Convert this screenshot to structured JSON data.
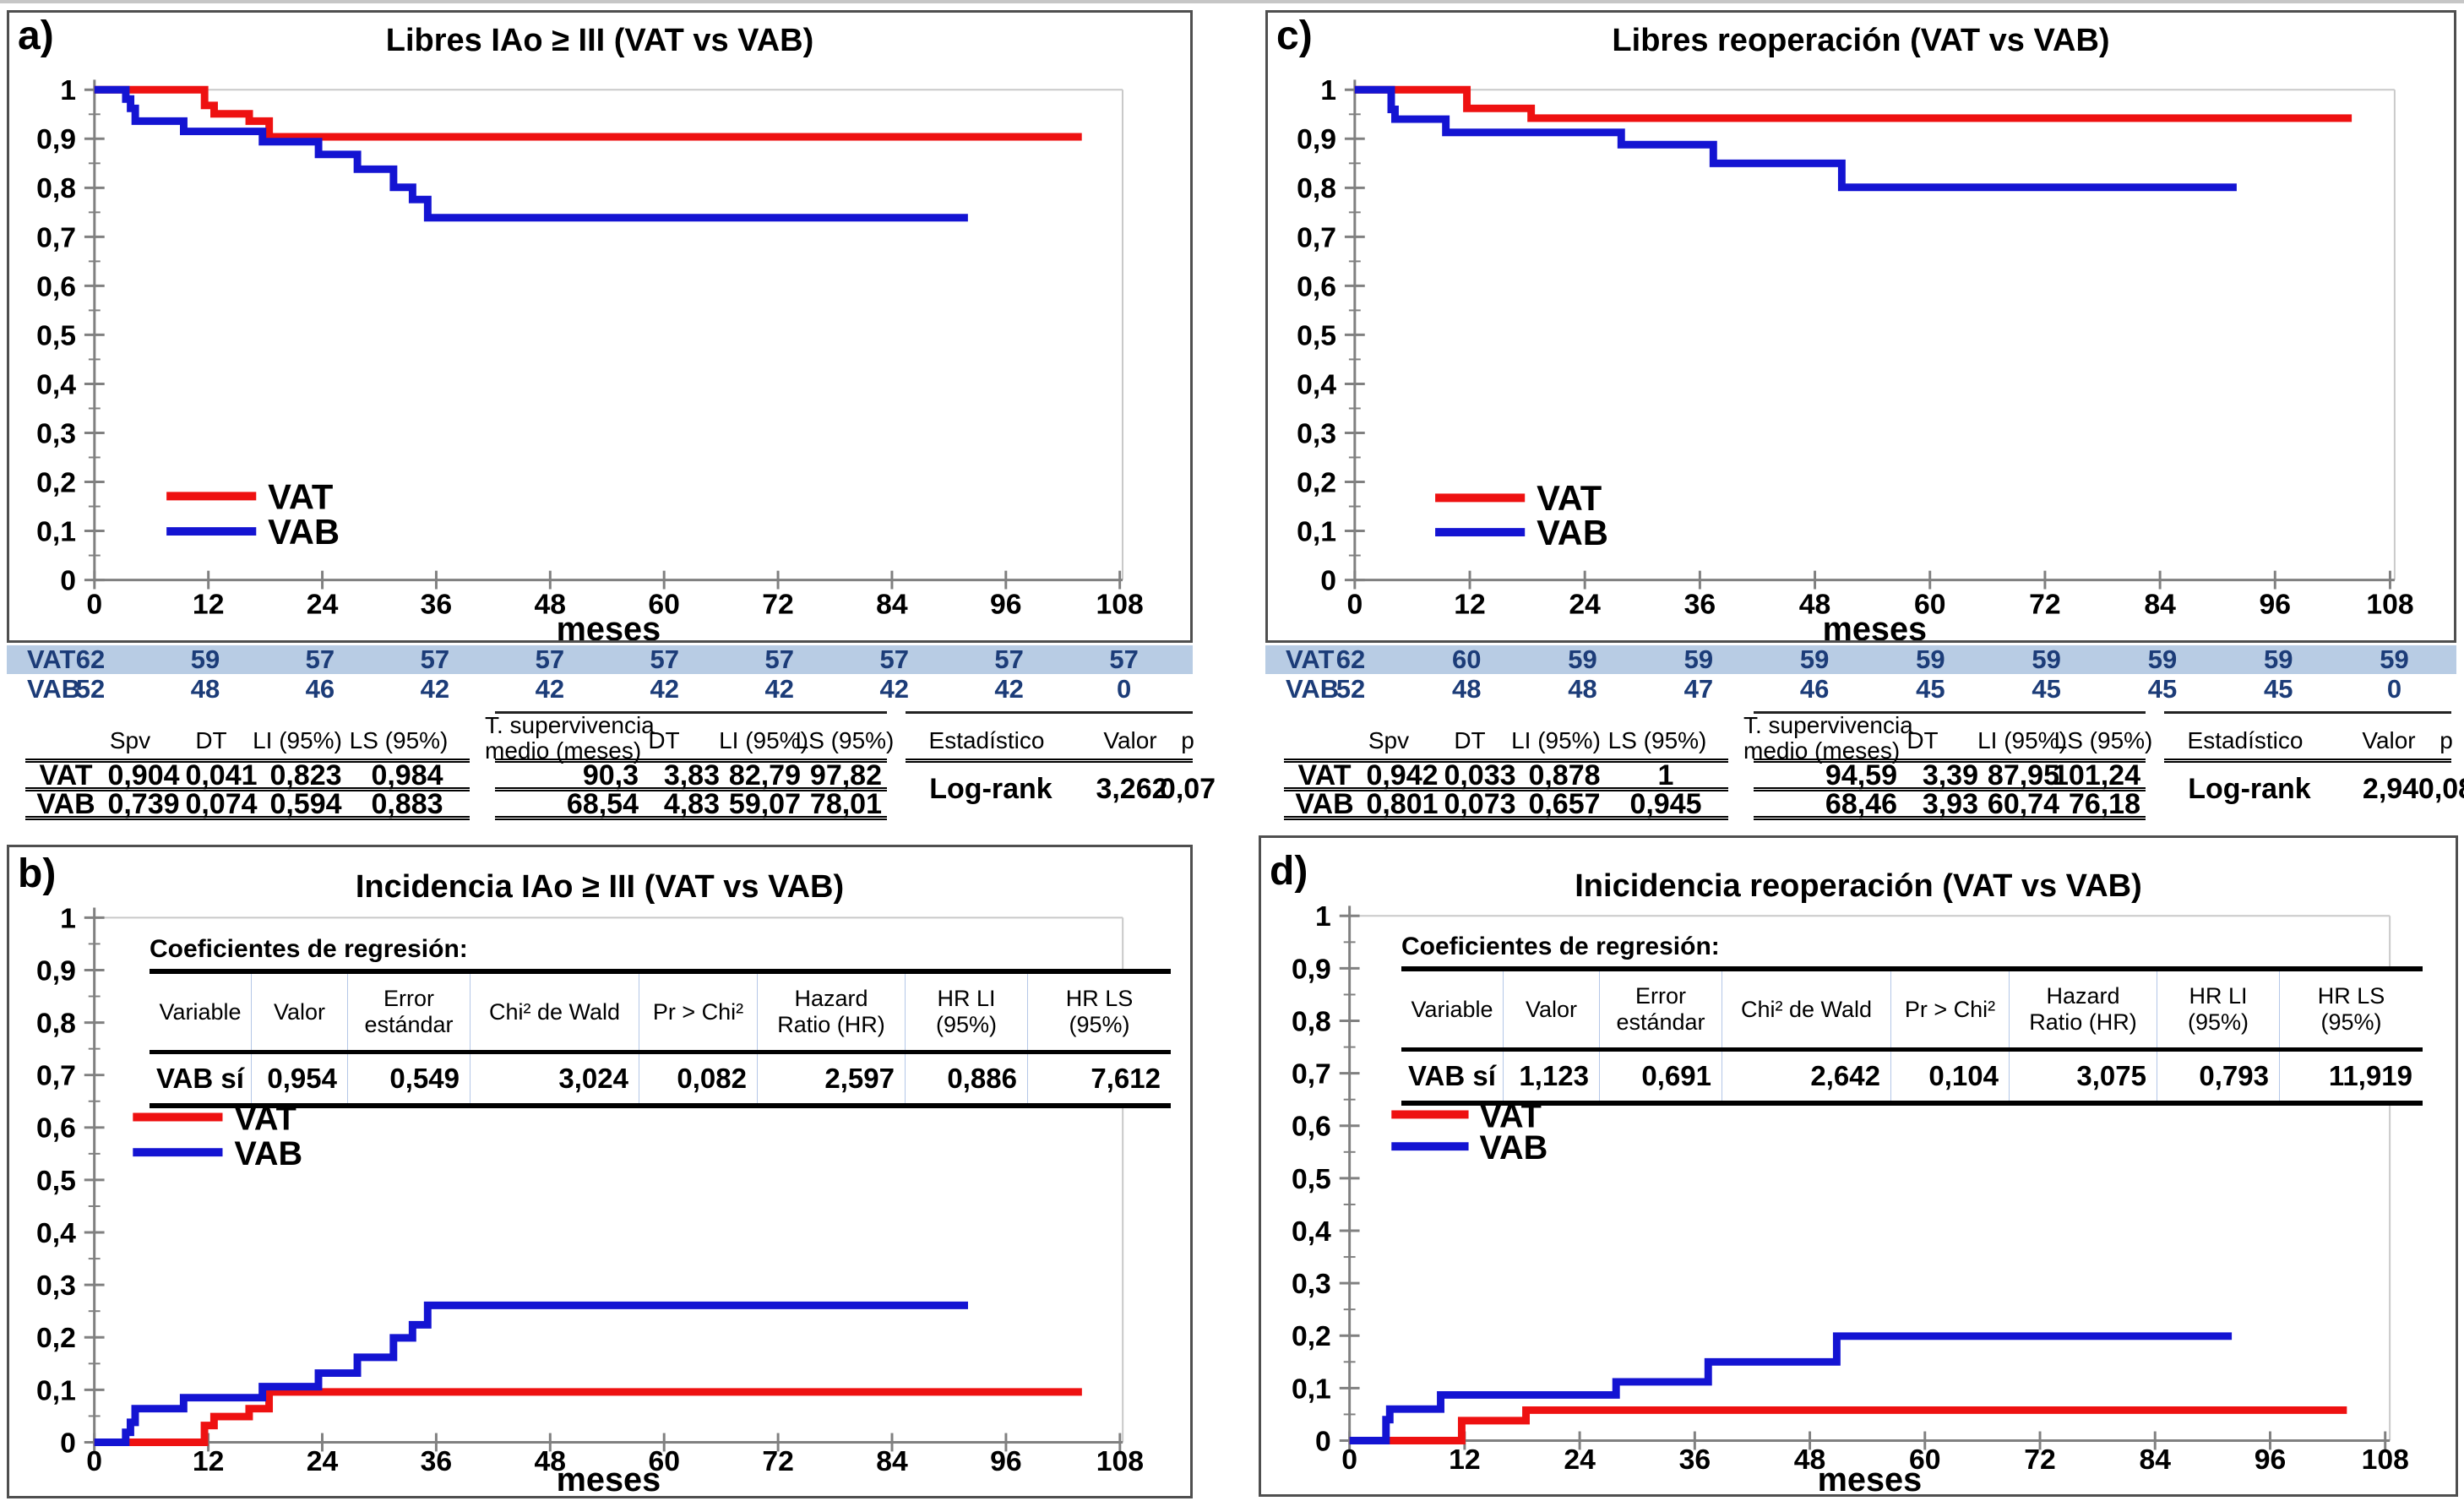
{
  "colors": {
    "vat": "#ee1111",
    "vab": "#1414d2",
    "axis": "#808080",
    "grid": "#c9c9c9",
    "risk_highlight": "#b8cce4",
    "risk_text": "#1c3c78",
    "panel_border": "#4f4f4f"
  },
  "panels": [
    {
      "id": "a",
      "letter": "a)",
      "title": "Libres IAo ≥ III (VAT vs VAB)"
    },
    {
      "id": "b",
      "letter": "b)",
      "title": "Incidencia IAo ≥ III (VAT vs VAB)"
    },
    {
      "id": "c",
      "letter": "c)",
      "title": "Libres reoperación  (VAT vs VAB)"
    },
    {
      "id": "d",
      "letter": "d)",
      "title": "Inicidencia reoperación (VAT vs VAB)"
    }
  ],
  "chart_data": [
    {
      "id": "a",
      "type": "step-line",
      "title": "Libres IAo ≥ III (VAT vs VAB)",
      "xlabel": "meses",
      "xlim": [
        0,
        108
      ],
      "ylim": [
        0,
        1
      ],
      "x_ticks": [
        0,
        12,
        24,
        36,
        48,
        60,
        72,
        84,
        96,
        108
      ],
      "y_ticks": [
        {
          "v": 1,
          "label": "1"
        },
        {
          "v": 0.9,
          "label": "0,9"
        },
        {
          "v": 0.8,
          "label": "0,8"
        },
        {
          "v": 0.7,
          "label": "0,7"
        },
        {
          "v": 0.6,
          "label": "0,6"
        },
        {
          "v": 0.5,
          "label": "0,5"
        },
        {
          "v": 0.4,
          "label": "0,4"
        },
        {
          "v": 0.3,
          "label": "0,3"
        },
        {
          "v": 0.2,
          "label": "0,2"
        },
        {
          "v": 0.1,
          "label": "0,1"
        },
        {
          "v": 0,
          "label": "0"
        }
      ],
      "legend": [
        {
          "label": "VAT",
          "color": "vat"
        },
        {
          "label": "VAB",
          "color": "vab"
        }
      ],
      "series": [
        {
          "name": "VAT",
          "color": "vat",
          "points": [
            [
              0,
              1
            ],
            [
              11.6,
              1
            ],
            [
              11.6,
              0.968
            ],
            [
              12.6,
              0.968
            ],
            [
              12.6,
              0.951
            ],
            [
              16.3,
              0.951
            ],
            [
              16.3,
              0.936
            ],
            [
              18.4,
              0.936
            ],
            [
              18.4,
              0.904
            ],
            [
              104,
              0.904
            ]
          ]
        },
        {
          "name": "VAB",
          "color": "vab",
          "points": [
            [
              0,
              1
            ],
            [
              3.3,
              1
            ],
            [
              3.3,
              0.981
            ],
            [
              3.8,
              0.981
            ],
            [
              3.8,
              0.962
            ],
            [
              4.3,
              0.962
            ],
            [
              4.3,
              0.936
            ],
            [
              9.4,
              0.936
            ],
            [
              9.4,
              0.915
            ],
            [
              17.7,
              0.915
            ],
            [
              17.7,
              0.894
            ],
            [
              23.6,
              0.894
            ],
            [
              23.6,
              0.868
            ],
            [
              27.7,
              0.868
            ],
            [
              27.7,
              0.838
            ],
            [
              31.5,
              0.838
            ],
            [
              31.5,
              0.801
            ],
            [
              33.5,
              0.801
            ],
            [
              33.5,
              0.776
            ],
            [
              35.1,
              0.776
            ],
            [
              35.1,
              0.739
            ],
            [
              92,
              0.739
            ]
          ]
        }
      ]
    },
    {
      "id": "b",
      "type": "step-line",
      "title": "Incidencia IAo ≥ III (VAT vs VAB)",
      "xlabel": "meses",
      "xlim": [
        0,
        108
      ],
      "ylim": [
        0,
        1
      ],
      "x_ticks": [
        0,
        12,
        24,
        36,
        48,
        60,
        72,
        84,
        96,
        108
      ],
      "y_ticks": [
        {
          "v": 1,
          "label": "1"
        },
        {
          "v": 0.9,
          "label": "0,9"
        },
        {
          "v": 0.8,
          "label": "0,8"
        },
        {
          "v": 0.7,
          "label": "0,7"
        },
        {
          "v": 0.6,
          "label": "0,6"
        },
        {
          "v": 0.5,
          "label": "0,5"
        },
        {
          "v": 0.4,
          "label": "0,4"
        },
        {
          "v": 0.3,
          "label": "0,3"
        },
        {
          "v": 0.2,
          "label": "0,2"
        },
        {
          "v": 0.1,
          "label": "0,1"
        },
        {
          "v": 0,
          "label": "0"
        }
      ],
      "legend": [
        {
          "label": "VAT",
          "color": "vat"
        },
        {
          "label": "VAB",
          "color": "vab"
        }
      ],
      "series": [
        {
          "name": "VAT",
          "color": "vat",
          "points": [
            [
              0,
              0
            ],
            [
              11.6,
              0
            ],
            [
              11.6,
              0.032
            ],
            [
              12.6,
              0.032
            ],
            [
              12.6,
              0.049
            ],
            [
              16.3,
              0.049
            ],
            [
              16.3,
              0.064
            ],
            [
              18.4,
              0.064
            ],
            [
              18.4,
              0.096
            ],
            [
              104,
              0.096
            ]
          ]
        },
        {
          "name": "VAB",
          "color": "vab",
          "points": [
            [
              0,
              0
            ],
            [
              3.3,
              0
            ],
            [
              3.3,
              0.019
            ],
            [
              3.8,
              0.019
            ],
            [
              3.8,
              0.038
            ],
            [
              4.3,
              0.038
            ],
            [
              4.3,
              0.064
            ],
            [
              9.4,
              0.064
            ],
            [
              9.4,
              0.085
            ],
            [
              17.7,
              0.085
            ],
            [
              17.7,
              0.106
            ],
            [
              23.6,
              0.106
            ],
            [
              23.6,
              0.132
            ],
            [
              27.7,
              0.132
            ],
            [
              27.7,
              0.162
            ],
            [
              31.5,
              0.162
            ],
            [
              31.5,
              0.199
            ],
            [
              33.5,
              0.199
            ],
            [
              33.5,
              0.224
            ],
            [
              35.1,
              0.224
            ],
            [
              35.1,
              0.261
            ],
            [
              92,
              0.261
            ]
          ]
        }
      ]
    },
    {
      "id": "c",
      "type": "step-line",
      "title": "Libres reoperación  (VAT vs VAB)",
      "xlabel": "meses",
      "xlim": [
        0,
        108
      ],
      "ylim": [
        0,
        1
      ],
      "x_ticks": [
        0,
        12,
        24,
        36,
        48,
        60,
        72,
        84,
        96,
        108
      ],
      "y_ticks": [
        {
          "v": 1,
          "label": "1"
        },
        {
          "v": 0.9,
          "label": "0,9"
        },
        {
          "v": 0.8,
          "label": "0,8"
        },
        {
          "v": 0.7,
          "label": "0,7"
        },
        {
          "v": 0.6,
          "label": "0,6"
        },
        {
          "v": 0.5,
          "label": "0,5"
        },
        {
          "v": 0.4,
          "label": "0,4"
        },
        {
          "v": 0.3,
          "label": "0,3"
        },
        {
          "v": 0.2,
          "label": "0,2"
        },
        {
          "v": 0.1,
          "label": "0,1"
        },
        {
          "v": 0,
          "label": "0"
        }
      ],
      "legend": [
        {
          "label": "VAT",
          "color": "vat"
        },
        {
          "label": "VAB",
          "color": "vab"
        }
      ],
      "series": [
        {
          "name": "VAT",
          "color": "vat",
          "points": [
            [
              0,
              1
            ],
            [
              11.7,
              1
            ],
            [
              11.7,
              0.962
            ],
            [
              18.4,
              0.962
            ],
            [
              18.4,
              0.942
            ],
            [
              104,
              0.942
            ]
          ]
        },
        {
          "name": "VAB",
          "color": "vab",
          "points": [
            [
              0,
              1
            ],
            [
              3.8,
              1
            ],
            [
              3.8,
              0.96
            ],
            [
              4.2,
              0.96
            ],
            [
              4.2,
              0.94
            ],
            [
              9.5,
              0.94
            ],
            [
              9.5,
              0.913
            ],
            [
              27.8,
              0.913
            ],
            [
              27.8,
              0.888
            ],
            [
              37.4,
              0.888
            ],
            [
              37.4,
              0.85
            ],
            [
              50.8,
              0.85
            ],
            [
              50.8,
              0.801
            ],
            [
              92,
              0.801
            ]
          ]
        }
      ]
    },
    {
      "id": "d",
      "type": "step-line",
      "title": "Inicidencia reoperación (VAT vs VAB)",
      "xlabel": "meses",
      "xlim": [
        0,
        108
      ],
      "ylim": [
        0,
        1
      ],
      "x_ticks": [
        0,
        12,
        24,
        36,
        48,
        60,
        72,
        84,
        96,
        108
      ],
      "y_ticks": [
        {
          "v": 1,
          "label": "1"
        },
        {
          "v": 0.9,
          "label": "0,9"
        },
        {
          "v": 0.8,
          "label": "0,8"
        },
        {
          "v": 0.7,
          "label": "0,7"
        },
        {
          "v": 0.6,
          "label": "0,6"
        },
        {
          "v": 0.5,
          "label": "0,5"
        },
        {
          "v": 0.4,
          "label": "0,4"
        },
        {
          "v": 0.3,
          "label": "0,3"
        },
        {
          "v": 0.2,
          "label": "0,2"
        },
        {
          "v": 0.1,
          "label": "0,1"
        },
        {
          "v": 0,
          "label": "0"
        }
      ],
      "legend": [
        {
          "label": "VAT",
          "color": "vat"
        },
        {
          "label": "VAB",
          "color": "vab"
        }
      ],
      "series": [
        {
          "name": "VAT",
          "color": "vat",
          "points": [
            [
              0,
              0
            ],
            [
              11.7,
              0
            ],
            [
              11.7,
              0.038
            ],
            [
              18.4,
              0.038
            ],
            [
              18.4,
              0.058
            ],
            [
              104,
              0.058
            ]
          ]
        },
        {
          "name": "VAB",
          "color": "vab",
          "points": [
            [
              0,
              0
            ],
            [
              3.8,
              0
            ],
            [
              3.8,
              0.04
            ],
            [
              4.2,
              0.04
            ],
            [
              4.2,
              0.06
            ],
            [
              9.5,
              0.06
            ],
            [
              9.5,
              0.087
            ],
            [
              27.8,
              0.087
            ],
            [
              27.8,
              0.112
            ],
            [
              37.4,
              0.112
            ],
            [
              37.4,
              0.15
            ],
            [
              50.8,
              0.15
            ],
            [
              50.8,
              0.199
            ],
            [
              92,
              0.199
            ]
          ]
        }
      ]
    }
  ],
  "risk_tables": [
    {
      "panel": "a",
      "rows": [
        {
          "label": "VAT",
          "highlight": true,
          "values": [
            "62",
            "59",
            "57",
            "57",
            "57",
            "57",
            "57",
            "57",
            "57",
            "57"
          ]
        },
        {
          "label": "VAB",
          "highlight": false,
          "values": [
            "52",
            "48",
            "46",
            "42",
            "42",
            "42",
            "42",
            "42",
            "42",
            "0"
          ]
        }
      ]
    },
    {
      "panel": "c",
      "rows": [
        {
          "label": "VAT",
          "highlight": true,
          "values": [
            "62",
            "60",
            "59",
            "59",
            "59",
            "59",
            "59",
            "59",
            "59",
            "59"
          ]
        },
        {
          "label": "VAB",
          "highlight": false,
          "values": [
            "52",
            "48",
            "48",
            "47",
            "46",
            "45",
            "45",
            "45",
            "45",
            "0"
          ]
        }
      ]
    }
  ],
  "stats_tables": [
    {
      "panel": "a",
      "group1_headers": [
        "Spv",
        "DT",
        "LI (95%)",
        "LS (95%)"
      ],
      "group2_headers": [
        "T. supervivencia\nmedio  (meses)",
        "DT",
        "LI (95%)",
        "LS (95%)"
      ],
      "group3_headers": [
        "Estadístico",
        "Valor",
        "p"
      ],
      "rows": [
        {
          "label": "VAT",
          "group1": [
            "0,904",
            "0,041",
            "0,823",
            "0,984"
          ],
          "group2": [
            "90,3",
            "3,83",
            "82,79",
            "97,82"
          ]
        },
        {
          "label": "VAB",
          "group1": [
            "0,739",
            "0,074",
            "0,594",
            "0,883"
          ],
          "group2": [
            "68,54",
            "4,83",
            "59,07",
            "78,01"
          ]
        }
      ],
      "test": {
        "name": "Log-rank",
        "value": "3,262",
        "p": "0,07"
      }
    },
    {
      "panel": "c",
      "group1_headers": [
        "Spv",
        "DT",
        "LI (95%)",
        "LS (95%)"
      ],
      "group2_headers": [
        "T. supervivencia\nmedio  (meses)",
        "DT",
        "LI (95%)",
        "LS (95%)"
      ],
      "group3_headers": [
        "Estadístico",
        "Valor",
        "p"
      ],
      "rows": [
        {
          "label": "VAT",
          "group1": [
            "0,942",
            "0,033",
            "0,878",
            "1"
          ],
          "group2": [
            "94,59",
            "3,39",
            "87,95",
            "101,24"
          ]
        },
        {
          "label": "VAB",
          "group1": [
            "0,801",
            "0,073",
            "0,657",
            "0,945"
          ],
          "group2": [
            "68,46",
            "3,93",
            "60,74",
            "76,18"
          ]
        }
      ],
      "test": {
        "name": "Log-rank",
        "value": "2,94",
        "p": "0,08"
      }
    }
  ],
  "regression_tables": [
    {
      "panel": "b",
      "caption": "Coeficientes de regresión:",
      "headers": [
        "Variable",
        "Valor",
        "Error\nestándar",
        "Chi² de Wald",
        "Pr > Chi²",
        "Hazard\nRatio (HR)",
        "HR LI\n(95%)",
        "HR LS\n(95%)"
      ],
      "row": [
        "VAB sí",
        "0,954",
        "0,549",
        "3,024",
        "0,082",
        "2,597",
        "0,886",
        "7,612"
      ]
    },
    {
      "panel": "d",
      "caption": "Coeficientes de regresión:",
      "headers": [
        "Variable",
        "Valor",
        "Error\nestándar",
        "Chi² de Wald",
        "Pr > Chi²",
        "Hazard\nRatio (HR)",
        "HR LI\n(95%)",
        "HR LS\n(95%)"
      ],
      "row": [
        "VAB sí",
        "1,123",
        "0,691",
        "2,642",
        "0,104",
        "3,075",
        "0,793",
        "11,919"
      ]
    }
  ]
}
